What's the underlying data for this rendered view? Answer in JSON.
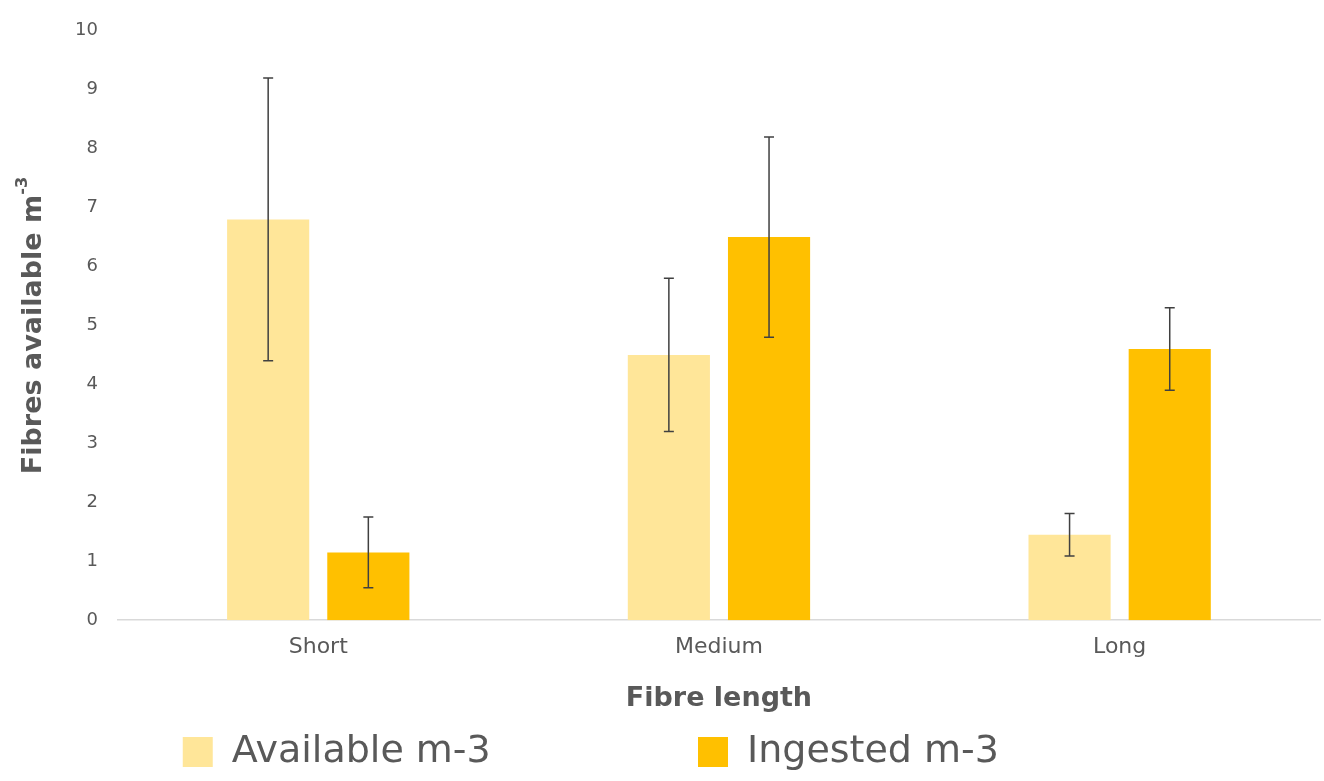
{
  "chart_data": {
    "type": "bar",
    "xlabel": "Fibre length",
    "ylabel": "Fibres available m$^{-3}$",
    "categories": [
      "Short",
      "Medium",
      "Long"
    ],
    "series": [
      {
        "name": "Available m-3",
        "color": "#ffe699",
        "values": [
          6.8,
          4.5,
          1.45
        ],
        "errors": [
          2.4,
          1.3,
          0.36
        ]
      },
      {
        "name": "Ingested m-3",
        "color": "#ffc000",
        "values": [
          1.15,
          6.5,
          4.6
        ],
        "errors": [
          0.6,
          1.7,
          0.7
        ]
      }
    ],
    "ylim": [
      0,
      10
    ],
    "yticks": [
      0,
      1,
      2,
      3,
      4,
      5,
      6,
      7,
      8,
      9,
      10
    ],
    "grid": false,
    "legend": "bottom"
  }
}
